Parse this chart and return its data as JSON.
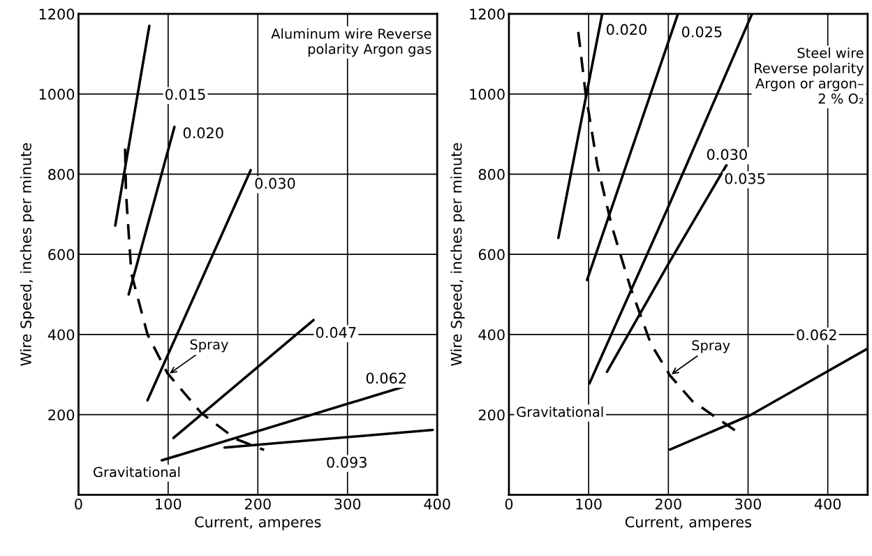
{
  "chart_data": [
    {
      "type": "line",
      "xlabel": "Current, amperes",
      "ylabel": "Wire Speed, inches per minute",
      "xlim": [
        0,
        400
      ],
      "ylim": [
        0,
        1200
      ],
      "xticks": [
        0,
        100,
        200,
        300,
        400
      ],
      "yticks": [
        200,
        400,
        600,
        800,
        1000,
        1200
      ],
      "grid": true,
      "legend": false,
      "series": [
        {
          "name": "0.015",
          "color": "#000000",
          "x": [
            41,
            79
          ],
          "values": [
            672,
            1170
          ]
        },
        {
          "name": "0.020",
          "color": "#000000",
          "x": [
            56,
            107
          ],
          "values": [
            500,
            918
          ]
        },
        {
          "name": "0.030",
          "color": "#000000",
          "x": [
            77,
            192
          ],
          "values": [
            236,
            810
          ]
        },
        {
          "name": "0.047",
          "color": "#000000",
          "x": [
            106,
            262
          ],
          "values": [
            142,
            436
          ]
        },
        {
          "name": "0.062",
          "color": "#000000",
          "x": [
            93,
            363
          ],
          "values": [
            86,
            270
          ]
        },
        {
          "name": "0.093",
          "color": "#000000",
          "x": [
            163,
            395
          ],
          "values": [
            118,
            162
          ]
        },
        {
          "color": "#000000",
          "line_style": "dashed",
          "x": [
            52,
            53,
            59,
            77,
            99,
            137,
            175,
            207
          ],
          "values": [
            864,
            752,
            552,
            400,
            304,
            204,
            140,
            112
          ]
        }
      ],
      "annotations": [
        "Aluminum wire Reverse\npolarity Argon gas",
        {
          "text": "Spray",
          "x": 100,
          "y": 300
        },
        "Gravitational"
      ]
    },
    {
      "type": "line",
      "xlabel": "Current, amperes",
      "ylabel": "Wire Speed, inches per minute",
      "xlim": [
        0,
        450
      ],
      "ylim": [
        0,
        1200
      ],
      "xticks": [
        0,
        100,
        200,
        300,
        400
      ],
      "yticks": [
        200,
        400,
        600,
        800,
        1000,
        1200
      ],
      "grid": true,
      "legend": false,
      "series": [
        {
          "name": "0.020",
          "color": "#000000",
          "x": [
            62,
            117
          ],
          "values": [
            641,
            1200
          ]
        },
        {
          "name": "0.025",
          "color": "#000000",
          "x": [
            98,
            212
          ],
          "values": [
            536,
            1200
          ]
        },
        {
          "name": "0.030",
          "color": "#000000",
          "x": [
            101,
            200,
            305
          ],
          "values": [
            278,
            719,
            1200
          ]
        },
        {
          "name": "0.035",
          "color": "#000000",
          "x": [
            123,
            200,
            273
          ],
          "values": [
            307,
            576,
            823
          ]
        },
        {
          "name": "0.062",
          "color": "#000000",
          "x": [
            202,
            303,
            450
          ],
          "values": [
            113,
            199,
            365
          ]
        },
        {
          "color": "#000000",
          "line_style": "dashed",
          "x": [
            87,
            96,
            111,
            129,
            152,
            178,
            202,
            230,
            287
          ],
          "values": [
            1155,
            1004,
            822,
            671,
            520,
            377,
            298,
            234,
            156
          ]
        }
      ],
      "annotations": [
        "Steel wire\nReverse polarity\nArgon or argon–\n2 % O₂",
        {
          "text": "Spray",
          "x": 202,
          "y": 298
        },
        "Gravitational"
      ]
    }
  ]
}
